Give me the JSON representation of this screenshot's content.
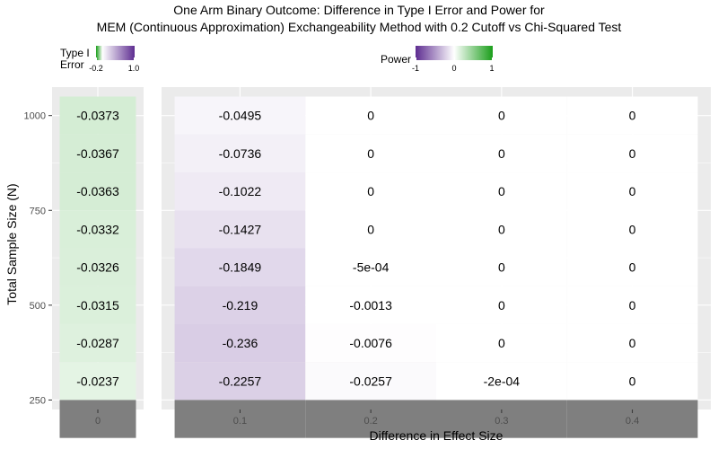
{
  "title_lines": [
    "One Arm Binary Outcome: Difference in Type I Error and Power for",
    "MEM (Continuous Approximation) Exchangeability Method with 0.2 Cutoff vs Chi-Squared Test"
  ],
  "legends": {
    "type1": {
      "title_lines": [
        "Type I",
        "Error"
      ],
      "ticks": [
        "-0.2",
        "1.0"
      ],
      "range": [
        -0.2,
        1.0
      ],
      "gradient": [
        "#1a9e1a",
        "#ffffff",
        "#5e2d91"
      ]
    },
    "power": {
      "title": "Power",
      "ticks": [
        "-1",
        "0",
        "1"
      ],
      "range": [
        -1,
        1
      ],
      "gradient": [
        "#5e2d91",
        "#ffffff",
        "#1a9e1a"
      ]
    }
  },
  "colors": {
    "panel_background": "#ebebeb",
    "grid": "#ffffff",
    "na_fill": "#7f7f7f",
    "axis_text": "#4d4d4d",
    "cell_text": "#000000"
  },
  "chart_data": {
    "type": "heatmap",
    "xlabel": "Difference in Effect Size",
    "ylabel": "Total Sample Size (N)",
    "y_ticks": [
      250,
      500,
      750,
      1000
    ],
    "y_lim": [
      225,
      1075
    ],
    "sample_sizes": [
      1000,
      900,
      800,
      700,
      600,
      500,
      400,
      300,
      200
    ],
    "panels": [
      {
        "facet": "Type I Error",
        "x_categories": [
          "0"
        ],
        "cells": [
          {
            "x": "0",
            "n": 1000,
            "value": -0.0373,
            "label": "-0.0373"
          },
          {
            "x": "0",
            "n": 900,
            "value": -0.0367,
            "label": "-0.0367"
          },
          {
            "x": "0",
            "n": 800,
            "value": -0.0363,
            "label": "-0.0363"
          },
          {
            "x": "0",
            "n": 700,
            "value": -0.0332,
            "label": "-0.0332"
          },
          {
            "x": "0",
            "n": 600,
            "value": -0.0326,
            "label": "-0.0326"
          },
          {
            "x": "0",
            "n": 500,
            "value": -0.0315,
            "label": "-0.0315"
          },
          {
            "x": "0",
            "n": 400,
            "value": -0.0287,
            "label": "-0.0287"
          },
          {
            "x": "0",
            "n": 300,
            "value": -0.0237,
            "label": "-0.0237"
          },
          {
            "x": "0",
            "n": 200,
            "value": null,
            "label": ""
          }
        ]
      },
      {
        "facet": "Power",
        "x_categories": [
          "0.1",
          "0.2",
          "0.3",
          "0.4"
        ],
        "cells": [
          {
            "x": "0.1",
            "n": 1000,
            "value": -0.0495,
            "label": "-0.0495"
          },
          {
            "x": "0.1",
            "n": 900,
            "value": -0.0736,
            "label": "-0.0736"
          },
          {
            "x": "0.1",
            "n": 800,
            "value": -0.1022,
            "label": "-0.1022"
          },
          {
            "x": "0.1",
            "n": 700,
            "value": -0.1427,
            "label": "-0.1427"
          },
          {
            "x": "0.1",
            "n": 600,
            "value": -0.1849,
            "label": "-0.1849"
          },
          {
            "x": "0.1",
            "n": 500,
            "value": -0.219,
            "label": "-0.219"
          },
          {
            "x": "0.1",
            "n": 400,
            "value": -0.236,
            "label": "-0.236"
          },
          {
            "x": "0.1",
            "n": 300,
            "value": -0.2257,
            "label": "-0.2257"
          },
          {
            "x": "0.1",
            "n": 200,
            "value": null,
            "label": ""
          },
          {
            "x": "0.2",
            "n": 1000,
            "value": 0,
            "label": "0"
          },
          {
            "x": "0.2",
            "n": 900,
            "value": 0,
            "label": "0"
          },
          {
            "x": "0.2",
            "n": 800,
            "value": 0,
            "label": "0"
          },
          {
            "x": "0.2",
            "n": 700,
            "value": 0,
            "label": "0"
          },
          {
            "x": "0.2",
            "n": 600,
            "value": -0.0005,
            "label": "-5e-04"
          },
          {
            "x": "0.2",
            "n": 500,
            "value": -0.0013,
            "label": "-0.0013"
          },
          {
            "x": "0.2",
            "n": 400,
            "value": -0.0076,
            "label": "-0.0076"
          },
          {
            "x": "0.2",
            "n": 300,
            "value": -0.0257,
            "label": "-0.0257"
          },
          {
            "x": "0.2",
            "n": 200,
            "value": null,
            "label": ""
          },
          {
            "x": "0.3",
            "n": 1000,
            "value": 0,
            "label": "0"
          },
          {
            "x": "0.3",
            "n": 900,
            "value": 0,
            "label": "0"
          },
          {
            "x": "0.3",
            "n": 800,
            "value": 0,
            "label": "0"
          },
          {
            "x": "0.3",
            "n": 700,
            "value": 0,
            "label": "0"
          },
          {
            "x": "0.3",
            "n": 600,
            "value": 0,
            "label": "0"
          },
          {
            "x": "0.3",
            "n": 500,
            "value": 0,
            "label": "0"
          },
          {
            "x": "0.3",
            "n": 400,
            "value": 0,
            "label": "0"
          },
          {
            "x": "0.3",
            "n": 300,
            "value": -0.0002,
            "label": "-2e-04"
          },
          {
            "x": "0.3",
            "n": 200,
            "value": null,
            "label": ""
          },
          {
            "x": "0.4",
            "n": 1000,
            "value": 0,
            "label": "0"
          },
          {
            "x": "0.4",
            "n": 900,
            "value": 0,
            "label": "0"
          },
          {
            "x": "0.4",
            "n": 800,
            "value": 0,
            "label": "0"
          },
          {
            "x": "0.4",
            "n": 700,
            "value": 0,
            "label": "0"
          },
          {
            "x": "0.4",
            "n": 600,
            "value": 0,
            "label": "0"
          },
          {
            "x": "0.4",
            "n": 500,
            "value": 0,
            "label": "0"
          },
          {
            "x": "0.4",
            "n": 400,
            "value": 0,
            "label": "0"
          },
          {
            "x": "0.4",
            "n": 300,
            "value": 0,
            "label": "0"
          },
          {
            "x": "0.4",
            "n": 200,
            "value": null,
            "label": ""
          }
        ]
      }
    ]
  }
}
